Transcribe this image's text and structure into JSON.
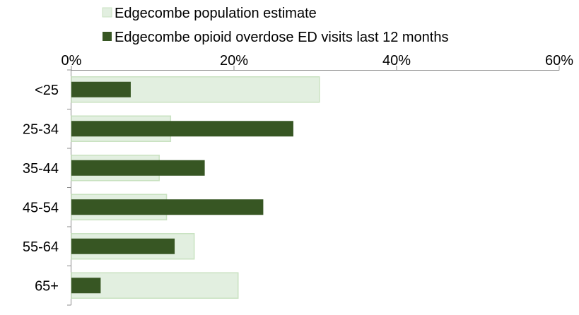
{
  "chart_data": {
    "type": "bar",
    "orientation": "horizontal",
    "axis_position": "top",
    "categories": [
      "<25",
      "25-34",
      "35-44",
      "45-54",
      "55-64",
      "65+"
    ],
    "series": [
      {
        "name": "Edgecombe population estimate",
        "values": [
          30.5,
          12.2,
          10.8,
          11.7,
          15.1,
          20.5
        ],
        "color": "#e2efe0",
        "border_color": "#c9e2c1"
      },
      {
        "name": "Edgecombe opioid overdose ED visits last 12 months",
        "values": [
          7.3,
          27.3,
          16.4,
          23.6,
          12.7,
          3.6
        ],
        "color": "#375623"
      }
    ],
    "xlim": [
      0,
      60
    ],
    "ticks": [
      0,
      20,
      40,
      60
    ],
    "tick_labels": [
      "0%",
      "20%",
      "40%",
      "60%"
    ],
    "legend_position": "top",
    "grid": false
  }
}
